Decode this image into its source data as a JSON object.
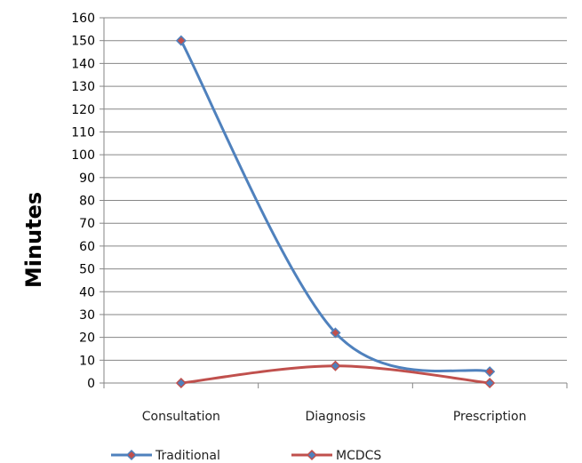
{
  "chart_data": {
    "type": "line",
    "categories": [
      "Consultation",
      "Diagnosis",
      "Prescription"
    ],
    "series": [
      {
        "name": "Traditional",
        "values": [
          150,
          22,
          5
        ],
        "color": "#4F81BD",
        "marker_color": "#C0504D"
      },
      {
        "name": "MCDCS",
        "values": [
          0,
          7.5,
          0
        ],
        "color": "#C0504D",
        "marker_color": "#4F81BD"
      }
    ],
    "title": "",
    "xlabel": "",
    "ylabel": "Minutes",
    "ylim": [
      0,
      160
    ],
    "ytick_step": 10,
    "grid": true,
    "smooth": true,
    "legend_position": "bottom",
    "gridline_color": "#868686",
    "axis_color": "#868686"
  }
}
